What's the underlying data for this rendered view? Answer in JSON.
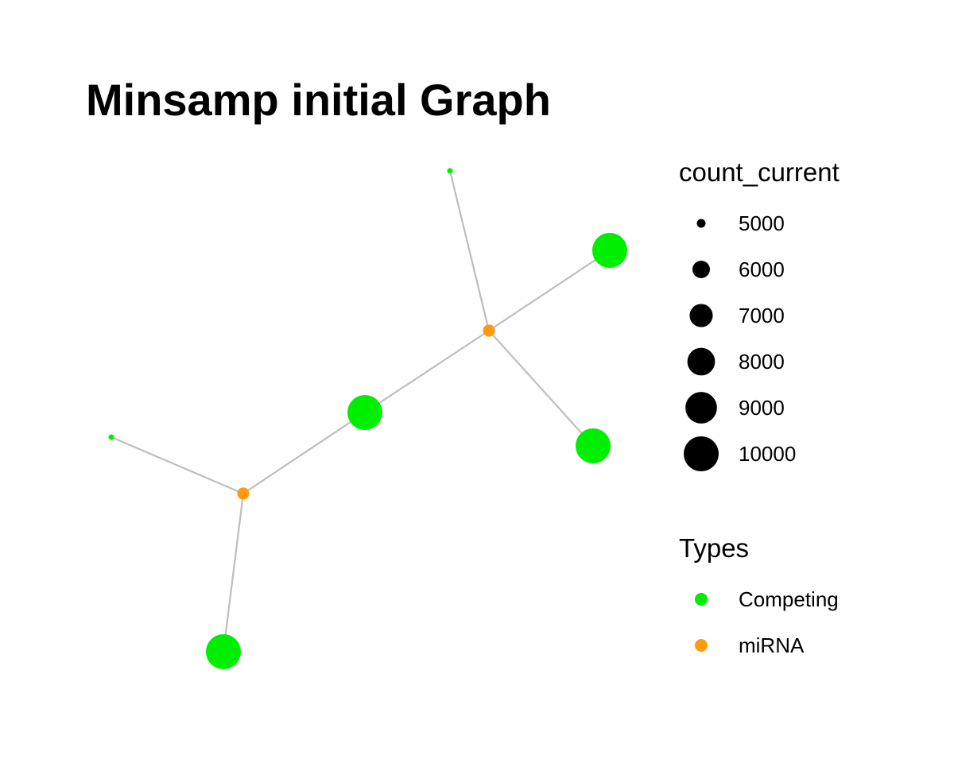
{
  "title": "Minsamp initial Graph",
  "colors": {
    "edge": "#bebebe",
    "background": "#ffffff"
  },
  "graph": {
    "nodes": [
      {
        "id": "n1",
        "type": "Competing",
        "count": 4800
      },
      {
        "id": "n2",
        "type": "Competing",
        "count": 10000
      },
      {
        "id": "n3",
        "type": "miRNA",
        "count": 5300
      },
      {
        "id": "n4",
        "type": "Competing",
        "count": 10000
      },
      {
        "id": "n5",
        "type": "Competing",
        "count": 10000
      },
      {
        "id": "n6",
        "type": "Competing",
        "count": 4800
      },
      {
        "id": "n7",
        "type": "miRNA",
        "count": 5300
      },
      {
        "id": "n8",
        "type": "Competing",
        "count": 10000
      }
    ],
    "edges": [
      {
        "source": "n1",
        "target": "n3"
      },
      {
        "source": "n2",
        "target": "n3"
      },
      {
        "source": "n3",
        "target": "n4"
      },
      {
        "source": "n3",
        "target": "n5"
      },
      {
        "source": "n4",
        "target": "n7"
      },
      {
        "source": "n6",
        "target": "n7"
      },
      {
        "source": "n7",
        "target": "n8"
      }
    ]
  },
  "legend": {
    "size": {
      "title": "count_current",
      "entries": [
        {
          "label": "5000",
          "value": 5000
        },
        {
          "label": "6000",
          "value": 6000
        },
        {
          "label": "7000",
          "value": 7000
        },
        {
          "label": "8000",
          "value": 8000
        },
        {
          "label": "9000",
          "value": 9000
        },
        {
          "label": "10000",
          "value": 10000
        }
      ]
    },
    "types": {
      "title": "Types",
      "entries": [
        {
          "label": "Competing",
          "color": "#00ee00"
        },
        {
          "label": "miRNA",
          "color": "#ff9a0e"
        }
      ]
    }
  }
}
